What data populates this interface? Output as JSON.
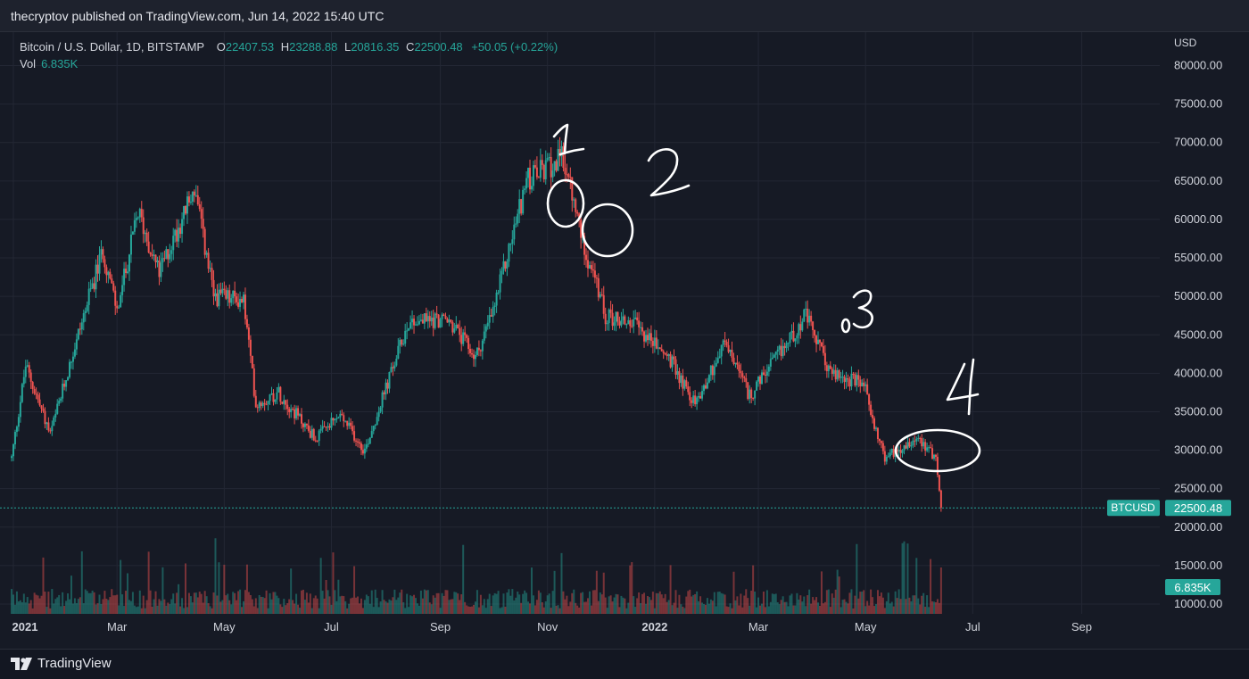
{
  "publisher_line": "thecryptov published on TradingView.com, Jun 14, 2022 15:40 UTC",
  "legend": {
    "symbol": "Bitcoin / U.S. Dollar, 1D, BITSTAMP",
    "open_label": "O",
    "open": "22407.53",
    "high_label": "H",
    "high": "23288.88",
    "low_label": "L",
    "low": "20816.35",
    "close_label": "C",
    "close": "22500.48",
    "change": "+50.05 (+0.22%)",
    "vol_label": "Vol",
    "vol": "6.835K"
  },
  "price_axis": {
    "currency": "USD",
    "ticks": [
      "80000.00",
      "75000.00",
      "70000.00",
      "65000.00",
      "60000.00",
      "55000.00",
      "50000.00",
      "45000.00",
      "40000.00",
      "35000.00",
      "30000.00",
      "25000.00",
      "20000.00",
      "15000.00",
      "10000.00"
    ]
  },
  "time_axis": {
    "labels": [
      "2021",
      "Mar",
      "May",
      "Jul",
      "Sep",
      "Nov",
      "2022",
      "Mar",
      "May",
      "Jul",
      "Sep"
    ]
  },
  "price_badge": {
    "symbol": "BTCUSD",
    "value": "22500.48",
    "color": "#26a69a"
  },
  "volume_badge": {
    "value": "6.835K",
    "color": "#26a69a"
  },
  "annotations": [
    "1",
    "2",
    "3",
    "4"
  ],
  "footer": {
    "brand": "TradingView"
  },
  "colors": {
    "up": "#26a69a",
    "down": "#ef5350",
    "background": "#161a25",
    "grid": "#232734",
    "text": "#d1d4dc"
  },
  "chart_data": {
    "type": "candlestick",
    "title": "Bitcoin / U.S. Dollar, 1D, BITSTAMP",
    "ylabel": "USD",
    "ylim": [
      10000,
      80000
    ],
    "x_range": [
      "2021-01-01",
      "2022-09-15"
    ],
    "last_price": 22500.48,
    "series": [
      {
        "name": "Bitcoin / U.S. Dollar",
        "dates": [
          "2020-12-31",
          "2021-01-08",
          "2021-01-22",
          "2021-02-08",
          "2021-02-21",
          "2021-03-01",
          "2021-03-13",
          "2021-03-25",
          "2021-04-14",
          "2021-04-25",
          "2021-05-12",
          "2021-05-19",
          "2021-06-01",
          "2021-06-22",
          "2021-07-06",
          "2021-07-20",
          "2021-08-14",
          "2021-08-31",
          "2021-09-07",
          "2021-09-21",
          "2021-10-01",
          "2021-10-20",
          "2021-11-10",
          "2021-11-20",
          "2021-12-04",
          "2021-12-20",
          "2022-01-09",
          "2022-01-24",
          "2022-02-10",
          "2022-02-24",
          "2022-03-28",
          "2022-04-11",
          "2022-04-30",
          "2022-05-09",
          "2022-05-12",
          "2022-05-31",
          "2022-06-10",
          "2022-06-13"
        ],
        "close": [
          29000,
          41000,
          32000,
          46000,
          56000,
          48000,
          61000,
          53000,
          64000,
          50000,
          49500,
          36000,
          37500,
          31500,
          34500,
          30000,
          46800,
          47000,
          46500,
          42000,
          48000,
          65000,
          68000,
          58000,
          47500,
          46500,
          42000,
          36000,
          44000,
          37000,
          47500,
          40000,
          38500,
          31000,
          29000,
          31800,
          29000,
          22500
        ]
      }
    ],
    "volume_note": "daily volume bars along chart bottom",
    "volume_latest": 6835
  }
}
